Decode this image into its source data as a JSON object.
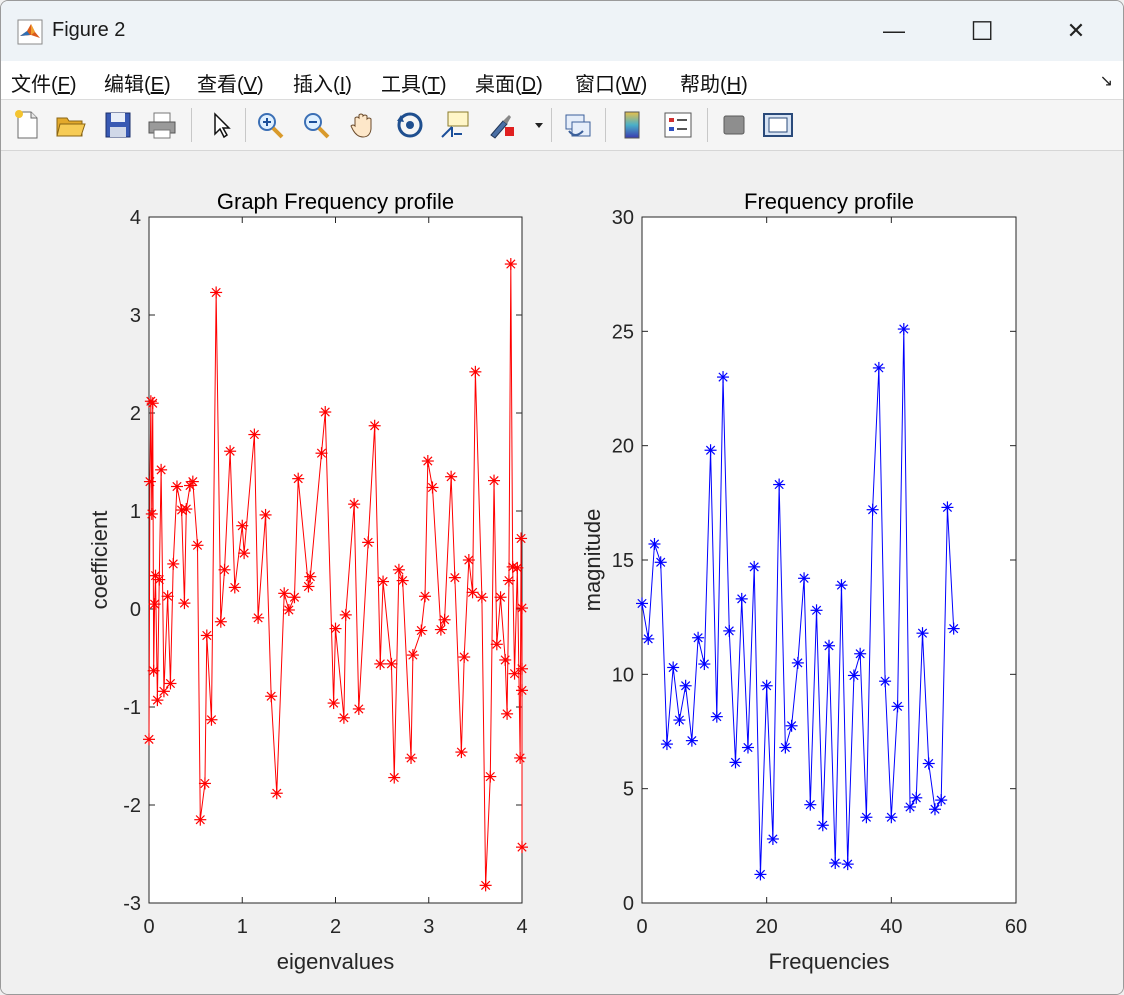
{
  "window": {
    "title": "Figure 2",
    "controls": {
      "minimize": "—",
      "maximize": "☐",
      "close": "✕"
    }
  },
  "menu": [
    {
      "label": "文件(",
      "key": "F",
      "tail": ")"
    },
    {
      "label": "编辑(",
      "key": "E",
      "tail": ")"
    },
    {
      "label": "查看(",
      "key": "V",
      "tail": ")"
    },
    {
      "label": "插入(",
      "key": "I",
      "tail": ")"
    },
    {
      "label": "工具(",
      "key": "T",
      "tail": ")"
    },
    {
      "label": "桌面(",
      "key": "D",
      "tail": ")"
    },
    {
      "label": "窗口(",
      "key": "W",
      "tail": ")"
    },
    {
      "label": "帮助(",
      "key": "H",
      "tail": ")"
    }
  ],
  "toolbar_icons": [
    "new-figure-icon",
    "open-file-icon",
    "save-icon",
    "print-icon",
    "pointer-icon",
    "zoom-in-icon",
    "zoom-out-icon",
    "pan-icon",
    "rotate-3d-icon",
    "data-cursor-icon",
    "brush-icon",
    "link-plot-icon",
    "colorbar-icon",
    "legend-icon",
    "hide-plot-tools-icon",
    "show-plot-tools-icon"
  ],
  "colors": {
    "series1": "#ff0000",
    "series2": "#0000ff"
  },
  "chart_data": [
    {
      "type": "line",
      "marker": "*",
      "color": "#ff0000",
      "title": "Graph Frequency profile",
      "xlabel": "eigenvalues",
      "ylabel": "coefficient",
      "xlim": [
        0,
        4
      ],
      "ylim": [
        -3,
        4
      ],
      "xticks": [
        0,
        1,
        2,
        3,
        4
      ],
      "yticks": [
        -3,
        -2,
        -1,
        0,
        1,
        2,
        3,
        4
      ],
      "x": [
        0.0,
        0.01,
        0.02,
        0.03,
        0.04,
        0.05,
        0.06,
        0.07,
        0.09,
        0.11,
        0.13,
        0.16,
        0.2,
        0.23,
        0.26,
        0.3,
        0.35,
        0.38,
        0.4,
        0.44,
        0.47,
        0.52,
        0.55,
        0.6,
        0.62,
        0.67,
        0.72,
        0.77,
        0.81,
        0.87,
        0.92,
        1.0,
        1.02,
        1.13,
        1.17,
        1.25,
        1.31,
        1.37,
        1.45,
        1.5,
        1.56,
        1.6,
        1.71,
        1.73,
        1.85,
        1.89,
        1.98,
        2.0,
        2.09,
        2.11,
        2.2,
        2.25,
        2.35,
        2.42,
        2.48,
        2.51,
        2.6,
        2.63,
        2.68,
        2.72,
        2.81,
        2.83,
        2.92,
        2.96,
        2.99,
        3.04,
        3.13,
        3.17,
        3.24,
        3.28,
        3.35,
        3.38,
        3.43,
        3.47,
        3.5,
        3.57,
        3.61,
        3.66,
        3.7,
        3.73,
        3.77,
        3.82,
        3.84,
        3.86,
        3.88,
        3.9,
        3.92,
        3.95,
        3.98,
        3.99,
        4.0,
        4.0,
        4.0,
        4.0
      ],
      "y": [
        -1.33,
        1.3,
        2.12,
        0.97,
        2.1,
        -0.63,
        0.05,
        0.34,
        -0.93,
        0.3,
        1.42,
        -0.84,
        0.13,
        -0.76,
        0.46,
        1.25,
        1.01,
        0.06,
        1.02,
        1.26,
        1.3,
        0.65,
        -2.15,
        -1.78,
        -0.27,
        -1.13,
        3.23,
        -0.13,
        0.4,
        1.61,
        0.22,
        0.85,
        0.57,
        1.78,
        -0.09,
        0.96,
        -0.89,
        -1.88,
        0.16,
        -0.01,
        0.12,
        1.33,
        0.23,
        0.33,
        1.59,
        2.01,
        -0.96,
        -0.2,
        -1.11,
        -0.06,
        1.07,
        -1.02,
        0.68,
        1.87,
        -0.56,
        0.28,
        -0.56,
        -1.72,
        0.4,
        0.29,
        -1.52,
        -0.47,
        -0.22,
        0.13,
        1.51,
        1.24,
        -0.21,
        -0.11,
        1.35,
        0.32,
        -1.46,
        -0.49,
        0.5,
        0.17,
        2.42,
        0.12,
        -2.82,
        -1.71,
        1.31,
        -0.36,
        0.12,
        -0.52,
        -1.07,
        0.29,
        3.52,
        0.43,
        -0.66,
        0.42,
        -1.52,
        0.72,
        -0.83,
        0.01,
        -0.61,
        -2.43
      ],
      "grid": false
    },
    {
      "type": "line",
      "marker": "*",
      "color": "#0000ff",
      "title": "Frequency profile",
      "xlabel": "Frequencies",
      "ylabel": "magnitude",
      "xlim": [
        0,
        60
      ],
      "ylim": [
        0,
        30
      ],
      "xticks": [
        0,
        20,
        40,
        60
      ],
      "yticks": [
        0,
        5,
        10,
        15,
        20,
        25,
        30
      ],
      "x": [
        0,
        1,
        2,
        3,
        4,
        5,
        6,
        7,
        8,
        9,
        10,
        11,
        12,
        13,
        14,
        15,
        16,
        17,
        18,
        19,
        20,
        21,
        22,
        23,
        24,
        25,
        26,
        27,
        28,
        29,
        30,
        31,
        32,
        33,
        34,
        35,
        36,
        37,
        38,
        39,
        40,
        41,
        42,
        43,
        44,
        45,
        46,
        47,
        48,
        49,
        50
      ],
      "y": [
        13.1,
        11.55,
        15.7,
        14.9,
        6.95,
        10.3,
        8.0,
        9.5,
        7.1,
        11.6,
        10.45,
        19.8,
        8.15,
        23.0,
        11.9,
        6.15,
        13.3,
        6.8,
        14.7,
        1.25,
        9.5,
        2.8,
        18.3,
        6.8,
        7.75,
        10.5,
        14.2,
        4.3,
        12.8,
        3.4,
        11.25,
        1.75,
        13.9,
        1.7,
        9.95,
        10.9,
        3.75,
        17.2,
        23.4,
        9.7,
        3.75,
        8.6,
        25.1,
        4.2,
        4.6,
        11.8,
        6.1,
        4.1,
        4.5,
        17.3,
        12.0
      ],
      "grid": false
    }
  ]
}
